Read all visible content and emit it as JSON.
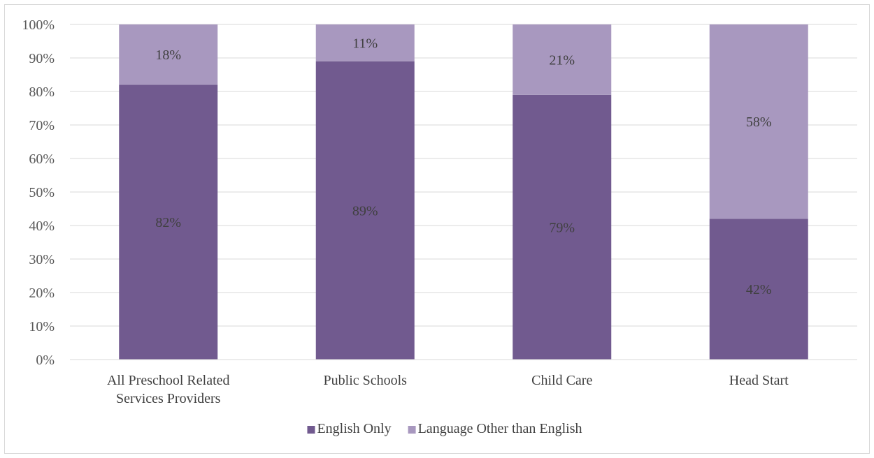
{
  "chart_data": {
    "type": "bar",
    "stacked": true,
    "categories": [
      "All Preschool Related Services Providers",
      "Public Schools",
      "Child Care",
      "Head Start"
    ],
    "category_lines": [
      [
        "All Preschool Related",
        "Services Providers"
      ],
      [
        "Public Schools"
      ],
      [
        "Child Care"
      ],
      [
        "Head Start"
      ]
    ],
    "series": [
      {
        "name": "English Only",
        "values": [
          82,
          89,
          79,
          42
        ],
        "labels": [
          "82%",
          "89%",
          "79%",
          "42%"
        ],
        "color": "#715a8f"
      },
      {
        "name": "Language Other than English",
        "values": [
          18,
          11,
          21,
          58
        ],
        "labels": [
          "18%",
          "11%",
          "21%",
          "58%"
        ],
        "color": "#a898bf"
      }
    ],
    "title": "",
    "xlabel": "",
    "ylabel": "",
    "ylim": [
      0,
      100
    ],
    "yticks": [
      "0%",
      "10%",
      "20%",
      "30%",
      "40%",
      "50%",
      "60%",
      "70%",
      "80%",
      "90%",
      "100%"
    ],
    "grid": true,
    "legend_position": "bottom"
  },
  "colors": {
    "gridline": "#d9d9d9",
    "axis": "#d9d9d9"
  }
}
